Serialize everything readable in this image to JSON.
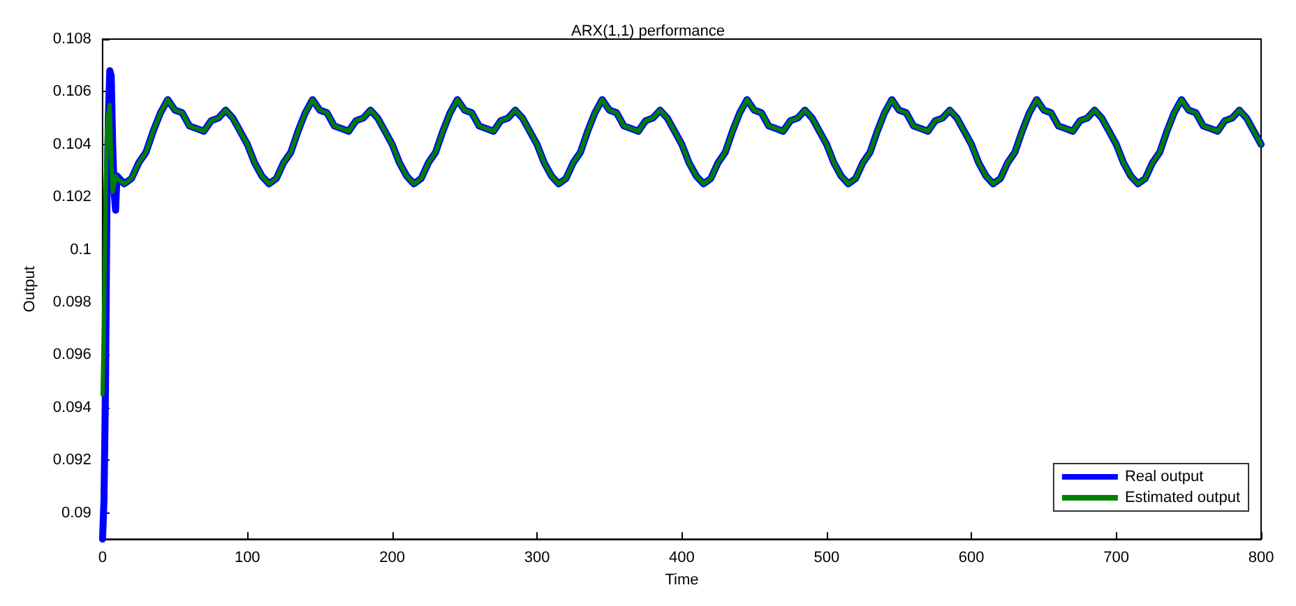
{
  "chart_data": {
    "type": "line",
    "title": "ARX(1,1) performance",
    "xlabel": "Time",
    "ylabel": "Output",
    "xlim": [
      0,
      800
    ],
    "xticks": [
      0,
      100,
      200,
      300,
      400,
      500,
      600,
      700,
      800
    ],
    "ylim": [
      0.089,
      0.108
    ],
    "yticks": [
      0.09,
      0.092,
      0.094,
      0.096,
      0.098,
      0.1,
      0.102,
      0.104,
      0.106,
      0.108
    ],
    "grid": false,
    "legend": "bottom right",
    "line_style": "solid",
    "marker": "none",
    "x": [
      0,
      1,
      2,
      3,
      4,
      5,
      6,
      7,
      8,
      9,
      10,
      15,
      20,
      25,
      30,
      35,
      40,
      45,
      50,
      55,
      60,
      65,
      70,
      75,
      80,
      85,
      90,
      95,
      100,
      105,
      110,
      115,
      120,
      125,
      130,
      135,
      140,
      145,
      150,
      155,
      160,
      165,
      170,
      175,
      180,
      185,
      190,
      195,
      200,
      205,
      210,
      215,
      220,
      225,
      230,
      235,
      240,
      245,
      250,
      255,
      260,
      265,
      270,
      275,
      280,
      285,
      290,
      295,
      300,
      305,
      310,
      315,
      320,
      325,
      330,
      335,
      340,
      345,
      350,
      355,
      360,
      365,
      370,
      375,
      380,
      385,
      390,
      395,
      400,
      405,
      410,
      415,
      420,
      425,
      430,
      435,
      440,
      445,
      450,
      455,
      460,
      465,
      470,
      475,
      480,
      485,
      490,
      495,
      500,
      505,
      510,
      515,
      520,
      525,
      530,
      535,
      540,
      545,
      550,
      555,
      560,
      565,
      570,
      575,
      580,
      585,
      590,
      595,
      600,
      605,
      610,
      615,
      620,
      625,
      630,
      635,
      640,
      645,
      650,
      655,
      660,
      665,
      670,
      675,
      680,
      685,
      690,
      695,
      700,
      705,
      710,
      715,
      720,
      725,
      730,
      735,
      740,
      745,
      750,
      755,
      760,
      765,
      770,
      775,
      780,
      785,
      790,
      795,
      800
    ],
    "series": [
      {
        "name": "Real output",
        "color": "#0000ff",
        "values": [
          0.089,
          0.0905,
          0.0945,
          0.1015,
          0.105,
          0.1068,
          0.1066,
          0.104,
          0.1022,
          0.1015,
          0.1028,
          0.1025,
          0.1027,
          0.1033,
          0.1037,
          0.1045,
          0.1052,
          0.1057,
          0.1053,
          0.1052,
          0.1047,
          0.1046,
          0.1045,
          0.1049,
          0.105,
          0.1053,
          0.105,
          0.1045,
          0.104,
          0.1033,
          0.1028,
          0.1025,
          0.1027,
          0.1033,
          0.1037,
          0.1045,
          0.1052,
          0.1057,
          0.1053,
          0.1052,
          0.1047,
          0.1046,
          0.1045,
          0.1049,
          0.105,
          0.1053,
          0.105,
          0.1045,
          0.104,
          0.1033,
          0.1028,
          0.1025,
          0.1027,
          0.1033,
          0.1037,
          0.1045,
          0.1052,
          0.1057,
          0.1053,
          0.1052,
          0.1047,
          0.1046,
          0.1045,
          0.1049,
          0.105,
          0.1053,
          0.105,
          0.1045,
          0.104,
          0.1033,
          0.1028,
          0.1025,
          0.1027,
          0.1033,
          0.1037,
          0.1045,
          0.1052,
          0.1057,
          0.1053,
          0.1052,
          0.1047,
          0.1046,
          0.1045,
          0.1049,
          0.105,
          0.1053,
          0.105,
          0.1045,
          0.104,
          0.1033,
          0.1028,
          0.1025,
          0.1027,
          0.1033,
          0.1037,
          0.1045,
          0.1052,
          0.1057,
          0.1053,
          0.1052,
          0.1047,
          0.1046,
          0.1045,
          0.1049,
          0.105,
          0.1053,
          0.105,
          0.1045,
          0.104,
          0.1033,
          0.1028,
          0.1025,
          0.1027,
          0.1033,
          0.1037,
          0.1045,
          0.1052,
          0.1057,
          0.1053,
          0.1052,
          0.1047,
          0.1046,
          0.1045,
          0.1049,
          0.105,
          0.1053,
          0.105,
          0.1045,
          0.104,
          0.1033,
          0.1028,
          0.1025,
          0.1027,
          0.1033,
          0.1037,
          0.1045,
          0.1052,
          0.1057,
          0.1053,
          0.1052,
          0.1047,
          0.1046,
          0.1045,
          0.1049,
          0.105,
          0.1053,
          0.105,
          0.1045,
          0.104,
          0.1033,
          0.1028,
          0.1025,
          0.1027,
          0.1033,
          0.1037,
          0.1045,
          0.1052,
          0.1057,
          0.1053,
          0.1052,
          0.1047,
          0.1046,
          0.1045,
          0.1049,
          0.105,
          0.1053,
          0.105,
          0.1045,
          0.104
        ]
      },
      {
        "name": "Estimated output",
        "color": "#008000",
        "values": [
          0.0945,
          0.0975,
          0.1015,
          0.1045,
          0.1052,
          0.1055,
          0.1035,
          0.1022,
          0.1025,
          0.1028,
          0.1027,
          0.1025,
          0.1027,
          0.1033,
          0.1037,
          0.1045,
          0.1052,
          0.1057,
          0.1053,
          0.1052,
          0.1047,
          0.1046,
          0.1045,
          0.1049,
          0.105,
          0.1053,
          0.105,
          0.1045,
          0.104,
          0.1033,
          0.1028,
          0.1025,
          0.1027,
          0.1033,
          0.1037,
          0.1045,
          0.1052,
          0.1057,
          0.1053,
          0.1052,
          0.1047,
          0.1046,
          0.1045,
          0.1049,
          0.105,
          0.1053,
          0.105,
          0.1045,
          0.104,
          0.1033,
          0.1028,
          0.1025,
          0.1027,
          0.1033,
          0.1037,
          0.1045,
          0.1052,
          0.1057,
          0.1053,
          0.1052,
          0.1047,
          0.1046,
          0.1045,
          0.1049,
          0.105,
          0.1053,
          0.105,
          0.1045,
          0.104,
          0.1033,
          0.1028,
          0.1025,
          0.1027,
          0.1033,
          0.1037,
          0.1045,
          0.1052,
          0.1057,
          0.1053,
          0.1052,
          0.1047,
          0.1046,
          0.1045,
          0.1049,
          0.105,
          0.1053,
          0.105,
          0.1045,
          0.104,
          0.1033,
          0.1028,
          0.1025,
          0.1027,
          0.1033,
          0.1037,
          0.1045,
          0.1052,
          0.1057,
          0.1053,
          0.1052,
          0.1047,
          0.1046,
          0.1045,
          0.1049,
          0.105,
          0.1053,
          0.105,
          0.1045,
          0.104,
          0.1033,
          0.1028,
          0.1025,
          0.1027,
          0.1033,
          0.1037,
          0.1045,
          0.1052,
          0.1057,
          0.1053,
          0.1052,
          0.1047,
          0.1046,
          0.1045,
          0.1049,
          0.105,
          0.1053,
          0.105,
          0.1045,
          0.104,
          0.1033,
          0.1028,
          0.1025,
          0.1027,
          0.1033,
          0.1037,
          0.1045,
          0.1052,
          0.1057,
          0.1053,
          0.1052,
          0.1047,
          0.1046,
          0.1045,
          0.1049,
          0.105,
          0.1053,
          0.105,
          0.1045,
          0.104,
          0.1033,
          0.1028,
          0.1025,
          0.1027,
          0.1033,
          0.1037,
          0.1045,
          0.1052,
          0.1057,
          0.1053,
          0.1052,
          0.1047,
          0.1046,
          0.1045,
          0.1049,
          0.105,
          0.1053,
          0.105,
          0.1045,
          0.104
        ]
      }
    ]
  }
}
